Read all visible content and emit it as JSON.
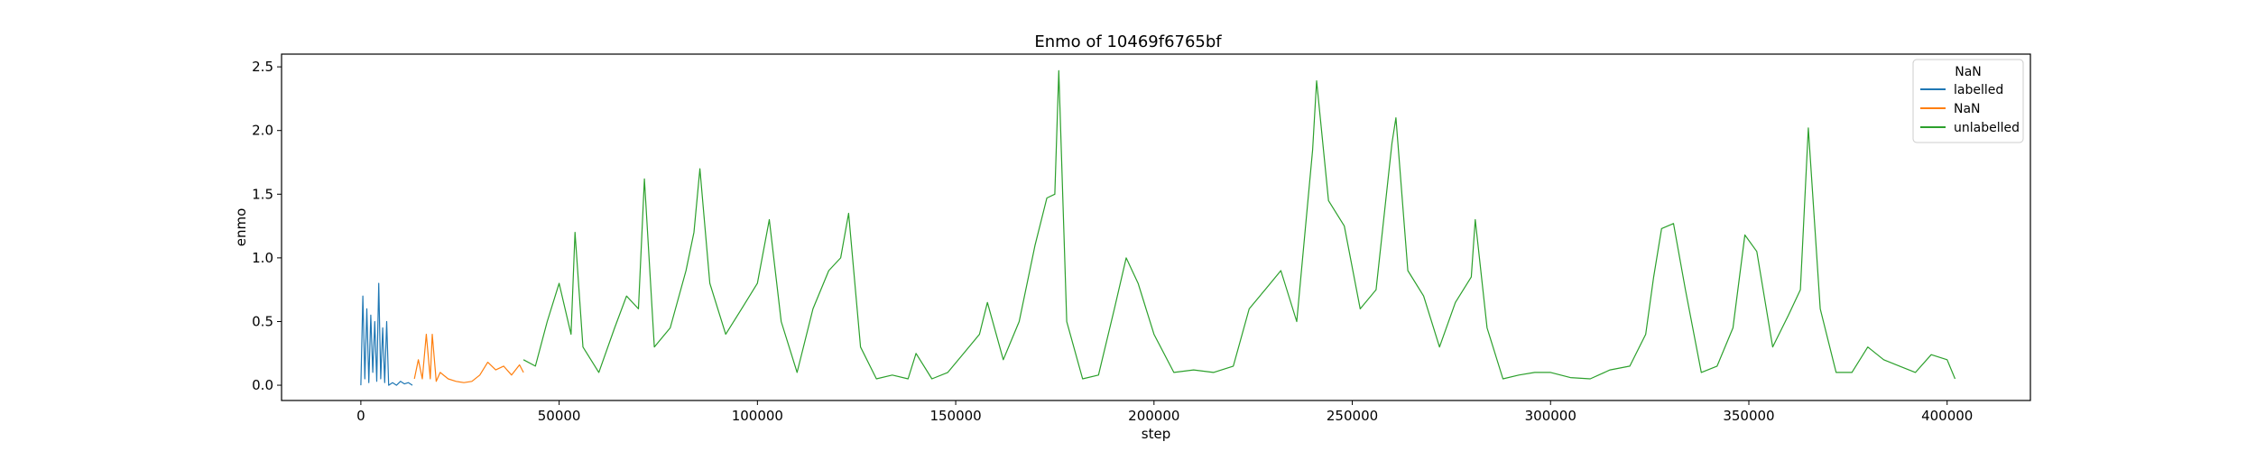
{
  "chart_data": {
    "type": "line",
    "title": "Enmo of 10469f6765bf",
    "xlabel": "step",
    "ylabel": "enmo",
    "xlim": [
      -20000,
      421000
    ],
    "ylim": [
      -0.12,
      2.6
    ],
    "xticks": [
      0,
      50000,
      100000,
      150000,
      200000,
      250000,
      300000,
      350000,
      400000
    ],
    "xtick_labels": [
      "0",
      "50000",
      "100000",
      "150000",
      "200000",
      "250000",
      "300000",
      "350000",
      "400000"
    ],
    "yticks": [
      0.0,
      0.5,
      1.0,
      1.5,
      2.0,
      2.5
    ],
    "ytick_labels": [
      "0.0",
      "0.5",
      "1.0",
      "1.5",
      "2.0",
      "2.5"
    ],
    "grid": false,
    "legend": {
      "title": "NaN",
      "placement": "top-right",
      "entries": [
        "labelled",
        "NaN",
        "unlabelled"
      ]
    },
    "series": [
      {
        "name": "labelled",
        "color": "#1f77b4",
        "x": [
          0,
          500,
          1000,
          1500,
          2000,
          2500,
          3000,
          3500,
          4000,
          4500,
          5000,
          5500,
          6000,
          6500,
          7000,
          8000,
          9000,
          10000,
          11000,
          12000,
          13000
        ],
        "y": [
          0.0,
          0.7,
          0.05,
          0.6,
          0.02,
          0.55,
          0.1,
          0.5,
          0.03,
          0.8,
          0.05,
          0.45,
          0.02,
          0.5,
          0.0,
          0.02,
          0.0,
          0.03,
          0.01,
          0.02,
          0.0
        ]
      },
      {
        "name": "NaN",
        "color": "#ff7f0e",
        "x": [
          13500,
          14500,
          15500,
          16500,
          17500,
          18000,
          19000,
          20000,
          22000,
          24000,
          26000,
          28000,
          30000,
          32000,
          34000,
          36000,
          38000,
          40000,
          41000
        ],
        "y": [
          0.05,
          0.2,
          0.05,
          0.4,
          0.05,
          0.4,
          0.03,
          0.1,
          0.05,
          0.03,
          0.02,
          0.03,
          0.08,
          0.18,
          0.12,
          0.15,
          0.08,
          0.16,
          0.1
        ]
      },
      {
        "name": "unlabelled",
        "color": "#2ca02c",
        "x": [
          41000,
          44000,
          47000,
          50000,
          53000,
          54000,
          56000,
          60000,
          64000,
          67000,
          70000,
          71500,
          74000,
          78000,
          82000,
          84000,
          85500,
          88000,
          92000,
          96000,
          100000,
          103000,
          106000,
          110000,
          114000,
          118000,
          121000,
          123000,
          126000,
          130000,
          134000,
          138000,
          140000,
          144000,
          148000,
          152000,
          156000,
          158000,
          162000,
          166000,
          170000,
          173000,
          175000,
          176000,
          178000,
          182000,
          186000,
          190000,
          193000,
          196000,
          200000,
          205000,
          210000,
          215000,
          220000,
          224000,
          228000,
          232000,
          236000,
          240000,
          241000,
          244000,
          248000,
          252000,
          256000,
          260000,
          261000,
          264000,
          268000,
          272000,
          276000,
          280000,
          281000,
          284000,
          288000,
          292000,
          296000,
          300000,
          305000,
          310000,
          315000,
          320000,
          324000,
          326000,
          328000,
          331000,
          334000,
          338000,
          342000,
          346000,
          349000,
          352000,
          356000,
          360000,
          363000,
          365000,
          368000,
          372000,
          376000,
          380000,
          384000,
          388000,
          392000,
          396000,
          400000,
          402000
        ],
        "y": [
          0.2,
          0.15,
          0.5,
          0.8,
          0.4,
          1.2,
          0.3,
          0.1,
          0.45,
          0.7,
          0.6,
          1.62,
          0.3,
          0.45,
          0.9,
          1.2,
          1.7,
          0.8,
          0.4,
          0.6,
          0.8,
          1.3,
          0.5,
          0.1,
          0.6,
          0.9,
          1.0,
          1.35,
          0.3,
          0.05,
          0.08,
          0.05,
          0.25,
          0.05,
          0.1,
          0.25,
          0.4,
          0.65,
          0.2,
          0.5,
          1.1,
          1.47,
          1.5,
          2.47,
          0.5,
          0.05,
          0.08,
          0.6,
          1.0,
          0.8,
          0.4,
          0.1,
          0.12,
          0.1,
          0.15,
          0.6,
          0.75,
          0.9,
          0.5,
          1.85,
          2.39,
          1.45,
          1.25,
          0.6,
          0.75,
          1.9,
          2.1,
          0.9,
          0.7,
          0.3,
          0.65,
          0.85,
          1.3,
          0.45,
          0.05,
          0.08,
          0.1,
          0.1,
          0.06,
          0.05,
          0.12,
          0.15,
          0.4,
          0.85,
          1.23,
          1.27,
          0.75,
          0.1,
          0.15,
          0.45,
          1.18,
          1.05,
          0.3,
          0.55,
          0.75,
          2.02,
          0.6,
          0.1,
          0.1,
          0.3,
          0.2,
          0.15,
          0.1,
          0.24,
          0.2,
          0.05
        ]
      }
    ]
  }
}
